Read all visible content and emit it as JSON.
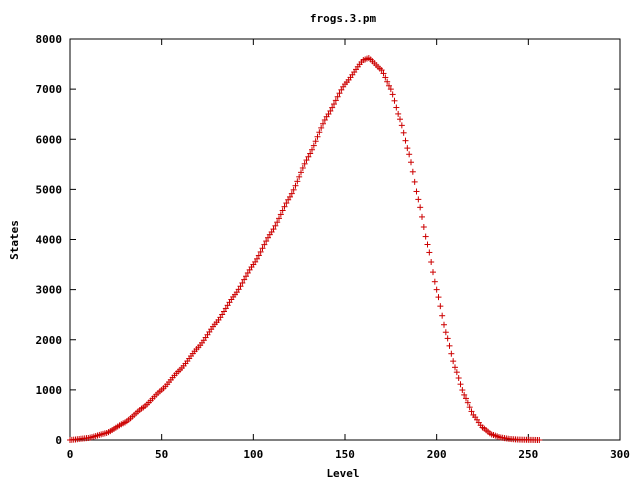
{
  "chart_data": {
    "type": "scatter",
    "title": "frogs.3.pm",
    "xlabel": "Level",
    "ylabel": "States",
    "xlim": [
      0,
      300
    ],
    "ylim": [
      0,
      8000
    ],
    "xticks": [
      "0",
      "50",
      "100",
      "150",
      "200",
      "250",
      "300"
    ],
    "yticks": [
      "0",
      "1000",
      "2000",
      "3000",
      "4000",
      "5000",
      "6000",
      "7000",
      "8000"
    ],
    "grid": false,
    "legend": "none",
    "marker": "plus",
    "color": "#cc0000",
    "x_range": [
      0,
      256
    ],
    "key_points": [
      [
        0,
        0
      ],
      [
        10,
        40
      ],
      [
        20,
        140
      ],
      [
        30,
        350
      ],
      [
        40,
        650
      ],
      [
        50,
        1000
      ],
      [
        60,
        1400
      ],
      [
        70,
        1850
      ],
      [
        80,
        2350
      ],
      [
        90,
        2900
      ],
      [
        100,
        3500
      ],
      [
        110,
        4150
      ],
      [
        120,
        4850
      ],
      [
        130,
        5650
      ],
      [
        140,
        6450
      ],
      [
        150,
        7100
      ],
      [
        160,
        7580
      ],
      [
        163,
        7620
      ],
      [
        170,
        7380
      ],
      [
        175,
        7000
      ],
      [
        180,
        6400
      ],
      [
        185,
        5700
      ],
      [
        190,
        4800
      ],
      [
        195,
        3900
      ],
      [
        200,
        3000
      ],
      [
        205,
        2150
      ],
      [
        210,
        1450
      ],
      [
        215,
        900
      ],
      [
        220,
        500
      ],
      [
        225,
        250
      ],
      [
        230,
        110
      ],
      [
        235,
        50
      ],
      [
        240,
        20
      ],
      [
        245,
        8
      ],
      [
        250,
        3
      ],
      [
        256,
        0
      ]
    ]
  }
}
